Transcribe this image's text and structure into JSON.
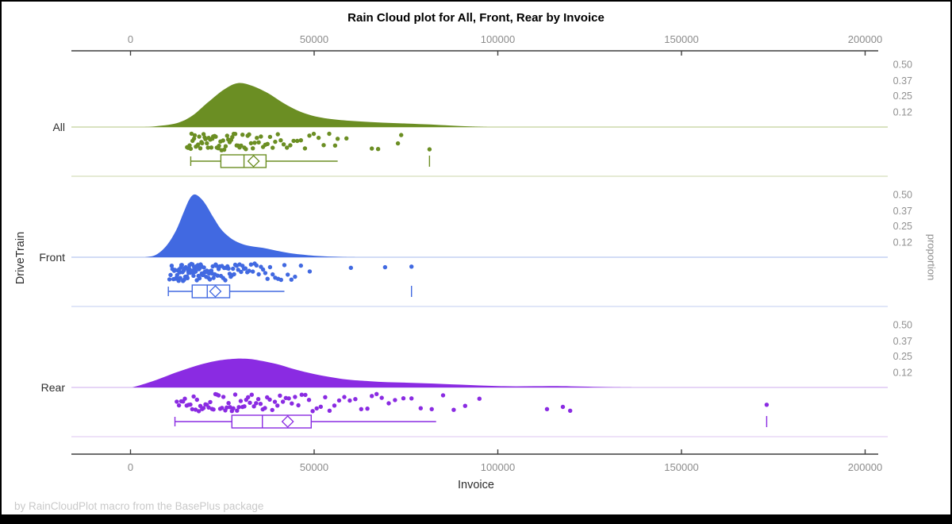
{
  "title": "Rain Cloud plot for All, Front, Rear by Invoice",
  "footer": "by RainCloudPlot macro from the BasePlus package",
  "xlabel": "Invoice",
  "ylabel": "DriveTrain",
  "right_label": "proportion",
  "colors": {
    "axis_line": "#3f3f3f",
    "tick_label": "#8c8c8c",
    "category_label": "#2e2e2e",
    "proportion_label": "#909090",
    "footer_text": "#c9c9c9",
    "frame_border": "#000000"
  },
  "chart_data": {
    "type": "raincloud",
    "title": "Rain Cloud plot for All, Front, Rear by Invoice",
    "x_field": "Invoice",
    "group_field": "DriveTrain",
    "x_axis": {
      "ticks": [
        0,
        50000,
        100000,
        150000,
        200000
      ],
      "tick_labels": [
        "0",
        "50000",
        "100000",
        "150000",
        "200000"
      ],
      "range_shown": [
        -16000,
        203500
      ],
      "positions": "top and bottom"
    },
    "proportion_axis": {
      "label": "proportion",
      "ticks": [
        0.5,
        0.37,
        0.25,
        0.12
      ],
      "tick_labels": [
        "0.50",
        "0.37",
        "0.25",
        "0.12"
      ],
      "position": "right, repeated per group band"
    },
    "legend": "none",
    "grid": "off",
    "groups": [
      {
        "label": "All",
        "color": "#6b8e23",
        "light_color": "#c2d09b",
        "density": [
          [
            2800,
            0
          ],
          [
            6500,
            0.005
          ],
          [
            12500,
            0.03
          ],
          [
            16800,
            0.09
          ],
          [
            21200,
            0.2
          ],
          [
            25500,
            0.3
          ],
          [
            29200,
            0.35
          ],
          [
            33000,
            0.33
          ],
          [
            37400,
            0.27
          ],
          [
            41700,
            0.19
          ],
          [
            46000,
            0.125
          ],
          [
            50300,
            0.085
          ],
          [
            55700,
            0.06
          ],
          [
            62200,
            0.045
          ],
          [
            68700,
            0.035
          ],
          [
            75200,
            0.028
          ],
          [
            81600,
            0.02
          ],
          [
            87000,
            0.012
          ],
          [
            92400,
            0.005
          ],
          [
            97800,
            0
          ]
        ],
        "box": {
          "whisker_low": 16400,
          "q1": 24600,
          "median": 30900,
          "mean": 33500,
          "q3": 36900,
          "whisker_high": 56400,
          "outlier_ticks": [
            81400
          ]
        },
        "points": [
          15400,
          15700,
          16100,
          16400,
          16600,
          16900,
          17300,
          17500,
          17800,
          18200,
          18400,
          18700,
          19000,
          19300,
          19500,
          19900,
          20200,
          20400,
          20800,
          21100,
          21300,
          21700,
          22000,
          22300,
          22500,
          22900,
          23200,
          23500,
          23900,
          24100,
          24500,
          24800,
          25200,
          25500,
          25900,
          26300,
          26600,
          27000,
          27400,
          27700,
          28100,
          28500,
          28900,
          29300,
          29700,
          30100,
          30500,
          31000,
          31400,
          31900,
          32300,
          32800,
          33300,
          33800,
          34400,
          34900,
          35500,
          36100,
          36700,
          37300,
          38000,
          38700,
          39400,
          40100,
          40900,
          41700,
          42600,
          43500,
          44400,
          45400,
          46400,
          47500,
          48700,
          49900,
          51200,
          52600,
          54100,
          55700,
          56400,
          58800,
          65700,
          67400,
          72800,
          73700,
          81400
        ]
      },
      {
        "label": "Front",
        "color": "#4169e1",
        "light_color": "#b6c6ef",
        "density": [
          [
            4000,
            0
          ],
          [
            7000,
            0.02
          ],
          [
            10000,
            0.1
          ],
          [
            12500,
            0.22
          ],
          [
            14500,
            0.36
          ],
          [
            16000,
            0.46
          ],
          [
            17300,
            0.5
          ],
          [
            18800,
            0.48
          ],
          [
            20500,
            0.42
          ],
          [
            22500,
            0.32
          ],
          [
            24500,
            0.23
          ],
          [
            26500,
            0.17
          ],
          [
            28500,
            0.13
          ],
          [
            31000,
            0.1
          ],
          [
            33500,
            0.085
          ],
          [
            36000,
            0.075
          ],
          [
            38500,
            0.06
          ],
          [
            41000,
            0.045
          ],
          [
            44000,
            0.03
          ],
          [
            47000,
            0.02
          ],
          [
            50000,
            0.012
          ],
          [
            54000,
            0.006
          ],
          [
            58000,
            0.002
          ],
          [
            62000,
            0
          ]
        ],
        "box": {
          "whisker_low": 10300,
          "q1": 16800,
          "median": 20900,
          "mean": 23100,
          "q3": 27000,
          "whisker_high": 41900,
          "outlier_ticks": [
            76500
          ]
        },
        "points": [
          10600,
          10900,
          11200,
          11400,
          11700,
          11900,
          12100,
          12300,
          12500,
          12700,
          12900,
          13100,
          13250,
          13400,
          13550,
          13700,
          13850,
          14000,
          14150,
          14300,
          14450,
          14600,
          14750,
          14900,
          15050,
          15200,
          15350,
          15500,
          15650,
          15800,
          15950,
          16100,
          16250,
          16400,
          16550,
          16700,
          16850,
          17000,
          17150,
          17300,
          17450,
          17600,
          17750,
          17900,
          18050,
          18200,
          18350,
          18500,
          18650,
          18800,
          18950,
          19100,
          19250,
          19400,
          19600,
          19800,
          20000,
          20200,
          20400,
          20600,
          20800,
          21000,
          21200,
          21400,
          21600,
          21800,
          22000,
          22200,
          22400,
          22600,
          22800,
          23000,
          23200,
          23400,
          23700,
          24000,
          24300,
          24600,
          24900,
          25200,
          25500,
          25800,
          26100,
          26400,
          26700,
          27000,
          27300,
          27600,
          27900,
          28200,
          28500,
          28900,
          29300,
          29700,
          30100,
          30500,
          30900,
          31300,
          31800,
          32300,
          32800,
          33300,
          33800,
          34300,
          34900,
          35500,
          36100,
          36700,
          37300,
          38000,
          38700,
          39400,
          40200,
          41000,
          41900,
          42800,
          43800,
          44800,
          46400,
          48800,
          60000,
          69300,
          76500
        ]
      },
      {
        "label": "Rear",
        "color": "#8a2be2",
        "light_color": "#d7bcf0",
        "density": [
          [
            500,
            0
          ],
          [
            4000,
            0.03
          ],
          [
            8000,
            0.07
          ],
          [
            12000,
            0.115
          ],
          [
            16000,
            0.155
          ],
          [
            20000,
            0.19
          ],
          [
            24000,
            0.215
          ],
          [
            28000,
            0.228
          ],
          [
            30500,
            0.23
          ],
          [
            33000,
            0.225
          ],
          [
            36000,
            0.21
          ],
          [
            40000,
            0.185
          ],
          [
            44000,
            0.15
          ],
          [
            48000,
            0.12
          ],
          [
            52000,
            0.095
          ],
          [
            56000,
            0.075
          ],
          [
            60000,
            0.06
          ],
          [
            65000,
            0.05
          ],
          [
            70000,
            0.042
          ],
          [
            75000,
            0.038
          ],
          [
            80000,
            0.033
          ],
          [
            85000,
            0.028
          ],
          [
            90000,
            0.022
          ],
          [
            95000,
            0.016
          ],
          [
            100000,
            0.011
          ],
          [
            105000,
            0.009
          ],
          [
            110000,
            0.01
          ],
          [
            115000,
            0.011
          ],
          [
            120000,
            0.009
          ],
          [
            126000,
            0.005
          ],
          [
            132000,
            0.002
          ],
          [
            138000,
            0
          ]
        ],
        "box": {
          "whisker_low": 12100,
          "q1": 27600,
          "median": 35900,
          "mean": 42800,
          "q3": 49200,
          "whisker_high": 83200,
          "outlier_ticks": [
            173200
          ]
        },
        "points": [
          12600,
          13200,
          13800,
          14300,
          14800,
          15300,
          15800,
          16300,
          16800,
          17200,
          17700,
          18100,
          18600,
          19000,
          19500,
          19900,
          20400,
          20800,
          21300,
          21700,
          22200,
          22600,
          23100,
          23500,
          24000,
          24400,
          24900,
          25300,
          25800,
          26200,
          26700,
          27100,
          27600,
          28000,
          28500,
          29000,
          29500,
          30000,
          30500,
          31000,
          31500,
          32000,
          32500,
          33000,
          33600,
          34200,
          34800,
          35400,
          36000,
          36600,
          37200,
          37900,
          38600,
          39300,
          40000,
          40700,
          41500,
          42300,
          43100,
          43900,
          44800,
          45700,
          46600,
          47600,
          48600,
          49600,
          50700,
          51800,
          53000,
          54200,
          55500,
          56800,
          58200,
          59700,
          61200,
          62800,
          64500,
          65700,
          67000,
          68400,
          70300,
          72000,
          74300,
          76500,
          79000,
          82000,
          85100,
          88000,
          91100,
          95000,
          113400,
          117700,
          119700,
          173200
        ]
      }
    ]
  }
}
